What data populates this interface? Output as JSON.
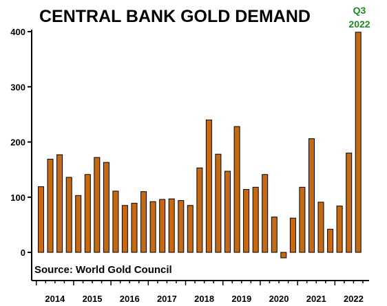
{
  "chart_data": {
    "type": "bar",
    "title": "CENTRAL BANK GOLD DEMAND",
    "source": "Source: World Gold Council",
    "highlight": {
      "line1": "Q3",
      "line2": "2022"
    },
    "xlabel": "",
    "ylabel": "",
    "ylim": [
      -45,
      420
    ],
    "y_ticks": [
      0,
      100,
      200,
      300,
      400
    ],
    "year_labels": [
      "2014",
      "2015",
      "2016",
      "2017",
      "2018",
      "2019",
      "2020",
      "2021",
      "2022"
    ],
    "quarters_per_year": 4,
    "values": [
      119,
      169,
      177,
      136,
      103,
      141,
      172,
      163,
      111,
      85,
      89,
      110,
      92,
      96,
      97,
      94,
      85,
      153,
      240,
      178,
      147,
      228,
      114,
      118,
      141,
      64,
      -10,
      62,
      118,
      206,
      91,
      42,
      84,
      180,
      399
    ],
    "colors": {
      "bar": "#c56a13",
      "bar_edge": "#000000",
      "highlight": "#1a8a1a"
    },
    "grid": false,
    "legend": "none"
  }
}
